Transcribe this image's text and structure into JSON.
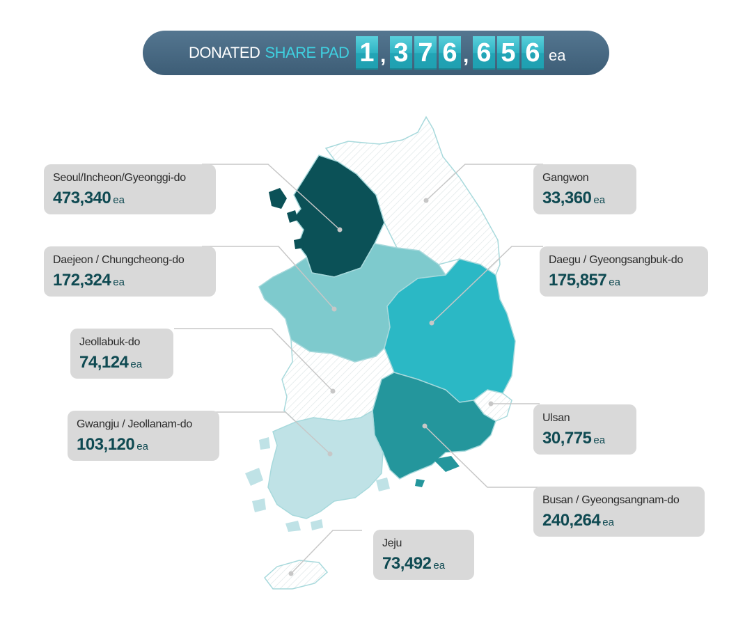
{
  "banner": {
    "label_main": "DONATED",
    "label_highlight": "SHARE PAD",
    "digits": [
      "1",
      "3",
      "7",
      "6",
      "6",
      "5",
      "6"
    ],
    "separator": ",",
    "unit": "ea",
    "total": 1376656
  },
  "colors": {
    "banner_bg": "#446680",
    "highlight": "#3fd0e0",
    "digit_bg": "#2fb3c3",
    "label_box": "#d9d9d9",
    "value_text": "#0f4a52",
    "region_seoul": "#0b5157",
    "region_daejeon": "#7ecacd",
    "region_daegu": "#2bb8c5",
    "region_busan": "#24969c",
    "region_gwangju": "#bfe2e6",
    "region_hatched": "#ffffff",
    "outline": "#a7d9dc"
  },
  "regions": [
    {
      "name": "Seoul/Incheon/Gyeonggi-do",
      "value": "473,340",
      "unit": "ea"
    },
    {
      "name": "Gangwon",
      "value": "33,360",
      "unit": "ea"
    },
    {
      "name": "Daejeon / Chungcheong-do",
      "value": "172,324",
      "unit": "ea"
    },
    {
      "name": "Daegu / Gyeongsangbuk-do",
      "value": "175,857",
      "unit": "ea"
    },
    {
      "name": "Jeollabuk-do",
      "value": "74,124",
      "unit": "ea"
    },
    {
      "name": "Ulsan",
      "value": "30,775",
      "unit": "ea"
    },
    {
      "name": "Gwangju / Jeollanam-do",
      "value": "103,120",
      "unit": "ea"
    },
    {
      "name": "Busan / Gyeongsangnam-do",
      "value": "240,264",
      "unit": "ea"
    },
    {
      "name": "Jeju",
      "value": "73,492",
      "unit": "ea"
    }
  ]
}
